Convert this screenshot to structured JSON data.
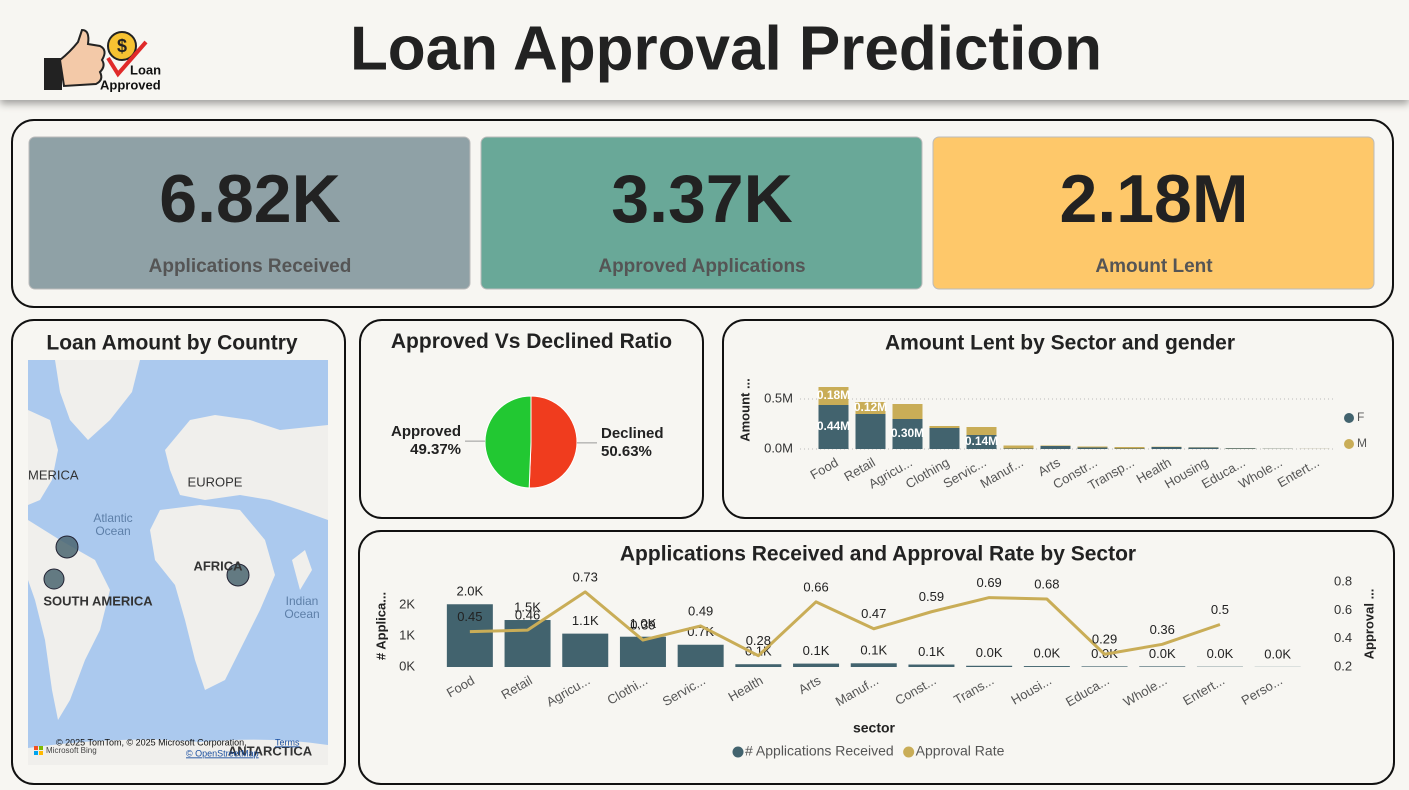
{
  "header": {
    "title": "Loan Approval Prediction",
    "logo_lines": [
      "Loan",
      "Approved"
    ]
  },
  "kpis": [
    {
      "value": "6.82K",
      "label": "Applications Received"
    },
    {
      "value": "3.37K",
      "label": "Approved Applications"
    },
    {
      "value": "2.18M",
      "label": "Amount Lent"
    }
  ],
  "map": {
    "title": "Loan Amount by Country",
    "labels": [
      "MERICA",
      "EUROPE",
      "Atlantic Ocean",
      "AFRICA",
      "SOUTH AMERICA",
      "Indian Ocean",
      "ANTARCTICA"
    ],
    "attribution": [
      "© 2025 TomTom, © 2025 Microsoft Corporation,",
      "Terms",
      "© OpenStreetMap",
      "Microsoft Bing"
    ]
  },
  "chart_data": [
    {
      "type": "pie",
      "title": "Approved Vs Declined Ratio",
      "categories": [
        "Declined",
        "Approved"
      ],
      "values": [
        50.63,
        49.37
      ],
      "value_labels": [
        "50.63%",
        "49.37%"
      ],
      "colors": [
        "#f03c1e",
        "#22c832"
      ]
    },
    {
      "type": "bar",
      "stacked": true,
      "title": "Amount Lent by Sector and gender",
      "y_label": "Amount ...",
      "categories": [
        "Food",
        "Retail",
        "Agricu...",
        "Clothing",
        "Servic...",
        "Manuf...",
        "Arts",
        "Constr...",
        "Transp...",
        "Health",
        "Housing",
        "Educa...",
        "Whole...",
        "Entert..."
      ],
      "series": [
        {
          "name": "F",
          "color": "#42636e",
          "values": [
            440000,
            350000,
            300000,
            210000,
            140000,
            5000,
            30000,
            15000,
            5000,
            20000,
            15000,
            8000,
            3000,
            1000
          ],
          "value_labels": [
            "0.44M",
            null,
            "0.30M",
            null,
            "0.14M",
            null,
            null,
            null,
            null,
            null,
            null,
            null,
            null,
            null
          ]
        },
        {
          "name": "M",
          "color": "#c9ad57",
          "values": [
            180000,
            120000,
            150000,
            20000,
            80000,
            30000,
            5000,
            10000,
            15000,
            3000,
            2000,
            2000,
            1000,
            1000
          ],
          "value_labels": [
            "0.18M",
            "0.12M",
            null,
            null,
            null,
            null,
            null,
            null,
            null,
            null,
            null,
            null,
            null,
            null
          ]
        }
      ],
      "ylim": [
        0,
        650000
      ],
      "yticks": [
        {
          "value": 0,
          "label": "0.0M"
        },
        {
          "value": 500000,
          "label": "0.5M"
        }
      ],
      "grid": true,
      "legend": "right"
    },
    {
      "type": "combo",
      "title": "Applications Received and Approval Rate by Sector",
      "x_label": "sector",
      "y_label": "# Applica...",
      "y2_label": "Approval ...",
      "categories": [
        "Food",
        "Retail",
        "Agricu...",
        "Clothi...",
        "Servic...",
        "Health",
        "Arts",
        "Manuf...",
        "Const...",
        "Trans...",
        "Housi...",
        "Educa...",
        "Whole...",
        "Entert...",
        "Perso..."
      ],
      "series": [
        {
          "name": "# Applications Received",
          "type": "bar",
          "color": "#42636e",
          "values": [
            2030,
            1520,
            1080,
            980,
            720,
            90,
            110,
            120,
            80,
            40,
            30,
            20,
            20,
            10,
            5
          ],
          "value_labels": [
            "2.0K",
            "1.5K",
            "1.1K",
            "1.0K",
            "0.7K",
            "0.1K",
            "0.1K",
            "0.1K",
            "0.1K",
            "0.0K",
            "0.0K",
            "0.0K",
            "0.0K",
            "0.0K",
            "0.0K"
          ]
        },
        {
          "name": "Approval Rate",
          "type": "line",
          "axis": "y2",
          "color": "#c9ad57",
          "values": [
            0.45,
            0.46,
            0.73,
            0.39,
            0.49,
            0.28,
            0.66,
            0.47,
            0.59,
            0.69,
            0.68,
            0.29,
            0.36,
            0.5,
            null
          ]
        }
      ],
      "ylim": [
        0,
        2750
      ],
      "yticks": [
        {
          "value": 0,
          "label": "0K"
        },
        {
          "value": 1000,
          "label": "1K"
        },
        {
          "value": 2000,
          "label": "2K"
        }
      ],
      "y2lim": [
        0.2,
        0.8
      ],
      "y2ticks": [
        0.2,
        0.4,
        0.6,
        0.8
      ],
      "legend": "bottom"
    }
  ]
}
